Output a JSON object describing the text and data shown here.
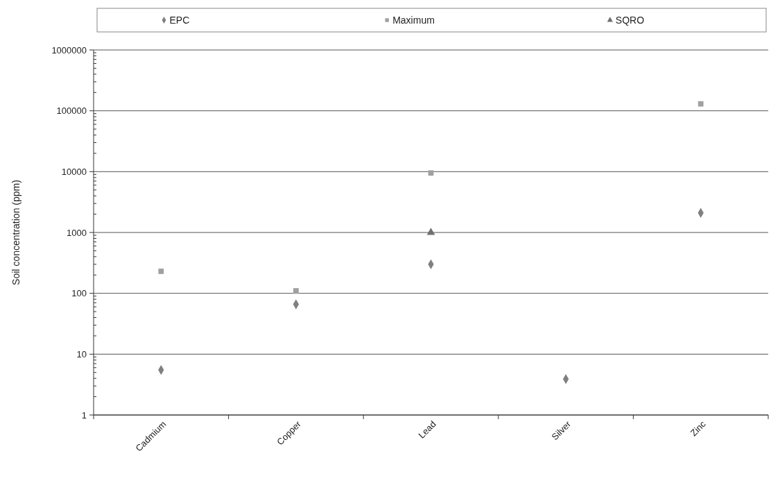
{
  "chart_data": {
    "type": "scatter",
    "ylabel": "Soil concentration (ppm)",
    "categories": [
      "Cadmium",
      "Copper",
      "Lead",
      "Silver",
      "Zinc"
    ],
    "log": "y",
    "ylim": [
      1,
      1000000
    ],
    "yticks": [
      1,
      10,
      100,
      1000,
      10000,
      100000,
      1000000
    ],
    "grid": "y",
    "legend": "top",
    "series": [
      {
        "name": "EPC",
        "color": "#808080",
        "marker": "diamond",
        "values": [
          5.5,
          66,
          300,
          3.9,
          2100
        ]
      },
      {
        "name": "Maximum",
        "color": "#a0a0a0",
        "marker": "square",
        "values": [
          230,
          110,
          9500,
          null,
          130000
        ]
      },
      {
        "name": "SQRO",
        "color": "#707070",
        "marker": "triangle",
        "values": [
          null,
          null,
          1000,
          null,
          null
        ]
      }
    ]
  }
}
